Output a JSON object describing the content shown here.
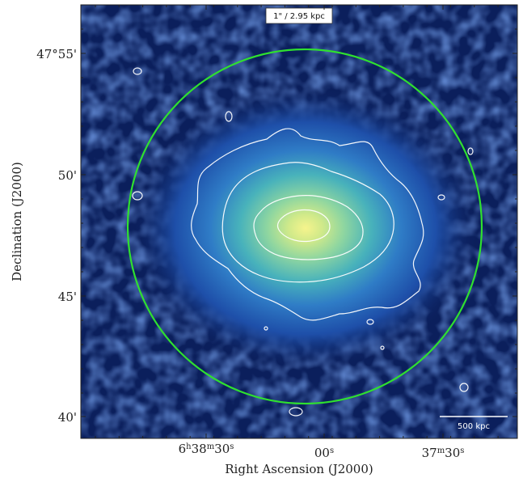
{
  "figure": {
    "xlabel": "Right Ascension (J2000)",
    "ylabel": "Declination (J2000)",
    "x_ticks": [
      {
        "label": "6h38m30s",
        "parts": [
          "6",
          "h",
          "38",
          "m",
          "30",
          "s"
        ]
      },
      {
        "label": "00s",
        "parts": [
          "",
          "",
          "",
          "",
          "00",
          "s"
        ]
      },
      {
        "label": "37m30s",
        "parts": [
          "",
          "",
          "37",
          "m",
          "30",
          "s"
        ]
      }
    ],
    "y_ticks": [
      "47°55'",
      "50'",
      "45'",
      "40'"
    ],
    "angular_scale_label": "1\" / 2.95 kpc",
    "scale_bar_label": "500 kpc",
    "colors": {
      "background": "#0b1f5c",
      "circle": "#2fe02f",
      "contours": "#ffffff",
      "core": "#f3f28a"
    }
  }
}
